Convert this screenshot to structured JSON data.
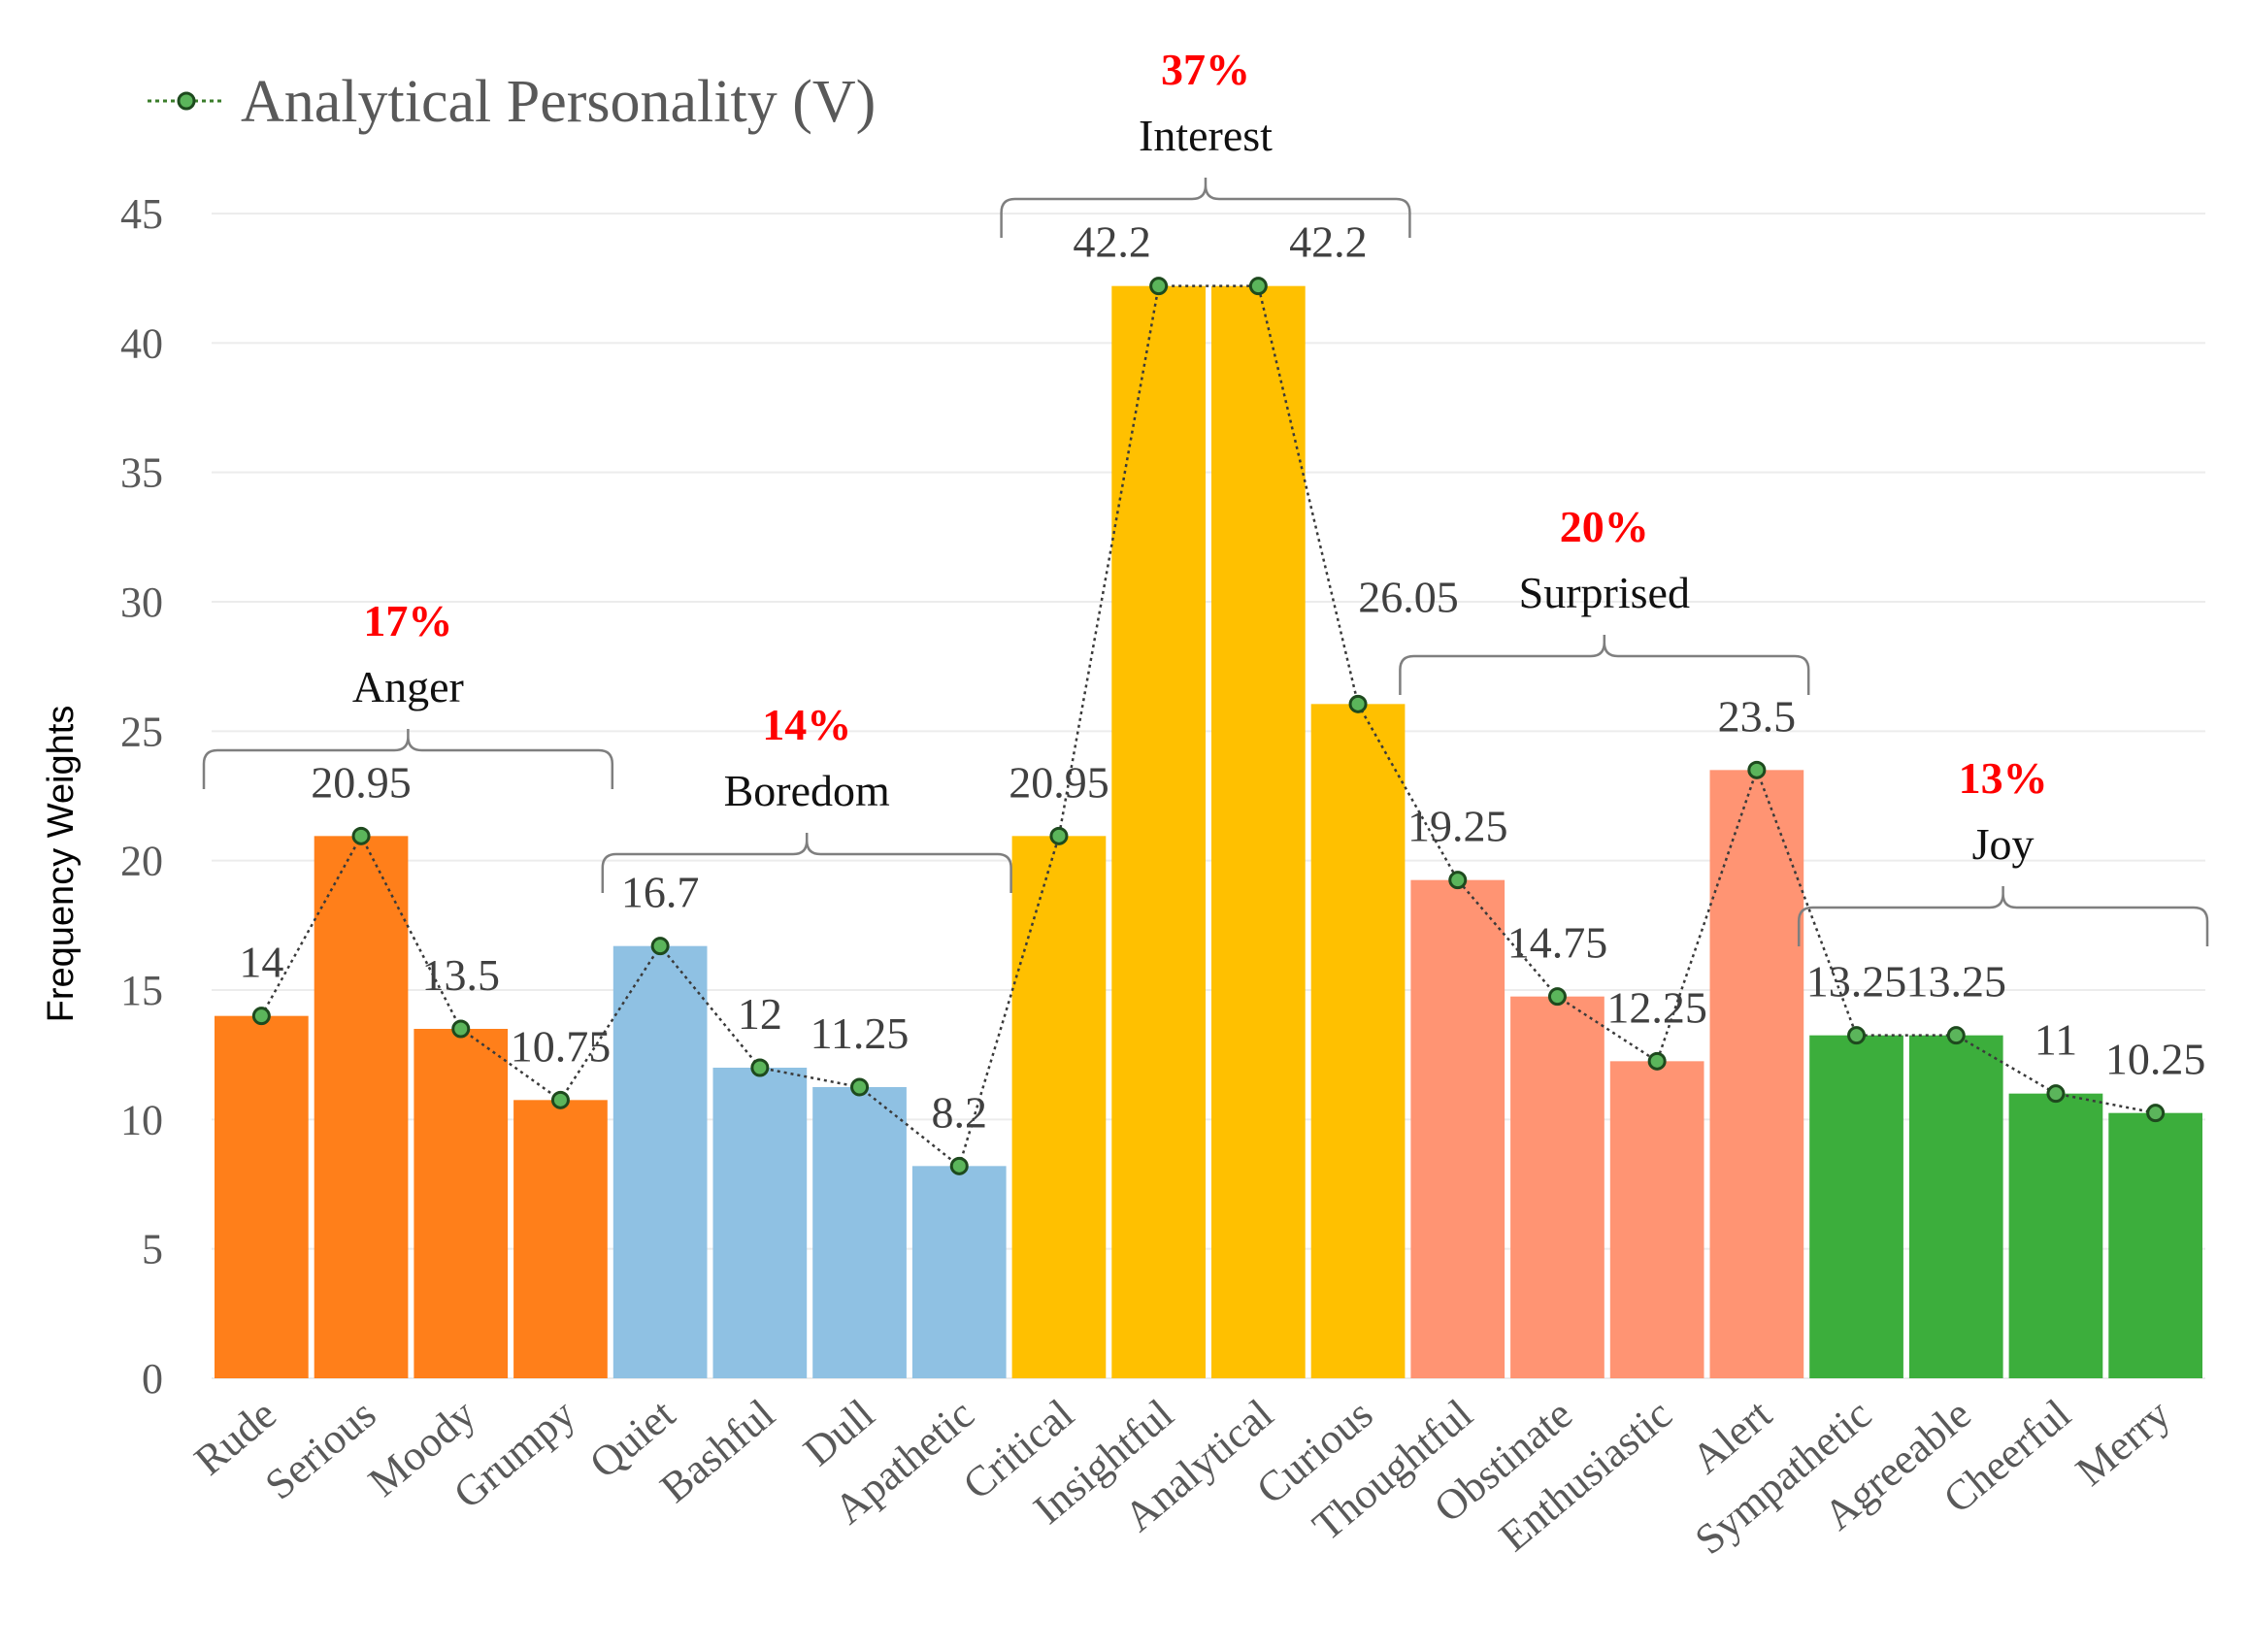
{
  "chart_data": {
    "type": "bar",
    "title": "",
    "xlabel": "",
    "ylabel": "Frequency Weights",
    "ylim": [
      0,
      45
    ],
    "yticks": [
      0,
      5,
      10,
      15,
      20,
      25,
      30,
      35,
      40,
      45
    ],
    "grid": true,
    "legend_position": "top-left",
    "categories": [
      "Rude",
      "Serious",
      "Moody",
      "Grumpy",
      "Quiet",
      "Bashful",
      "Dull",
      "Apathetic",
      "Critical",
      "Insightful",
      "Analytical",
      "Curious",
      "Thoughtful",
      "Obstinate",
      "Enthusiastic",
      "Alert",
      "Sympathetic",
      "Agreeable",
      "Cheerful",
      "Merry"
    ],
    "values": [
      14,
      20.95,
      13.5,
      10.75,
      16.7,
      12,
      11.25,
      8.2,
      20.95,
      42.2,
      42.2,
      26.05,
      19.25,
      14.75,
      12.25,
      23.5,
      13.25,
      13.25,
      11,
      10.25
    ],
    "value_labels": [
      "14",
      "20.95",
      "13.5",
      "10.75",
      "16.7",
      "12",
      "11.25",
      "8.2",
      "20.95",
      "42.2",
      "42.2",
      "26.05",
      "19.25",
      "14.75",
      "12.25",
      "23.5",
      "13.25",
      "13.25",
      "11",
      "10.25"
    ],
    "series": [
      {
        "name": "Analytical Personality (V)",
        "kind": "line",
        "color": "#3a7d2a",
        "values": [
          14,
          20.95,
          13.5,
          10.75,
          16.7,
          12,
          11.25,
          8.2,
          20.95,
          42.2,
          42.2,
          26.05,
          19.25,
          14.75,
          12.25,
          23.5,
          13.25,
          13.25,
          11,
          10.25
        ]
      }
    ],
    "groups": [
      {
        "name": "Anger",
        "percent": "17%",
        "start": 0,
        "end": 3,
        "color": "#ff7f1a"
      },
      {
        "name": "Boredom",
        "percent": "14%",
        "start": 4,
        "end": 7,
        "color": "#8fc1e3"
      },
      {
        "name": "Interest",
        "percent": "37%",
        "start": 8,
        "end": 11,
        "color": "#ffc000"
      },
      {
        "name": "Surprised",
        "percent": "20%",
        "start": 12,
        "end": 15,
        "color": "#ff9473"
      },
      {
        "name": "Joy",
        "percent": "13%",
        "start": 16,
        "end": 19,
        "color": "#3cae3c"
      }
    ]
  }
}
